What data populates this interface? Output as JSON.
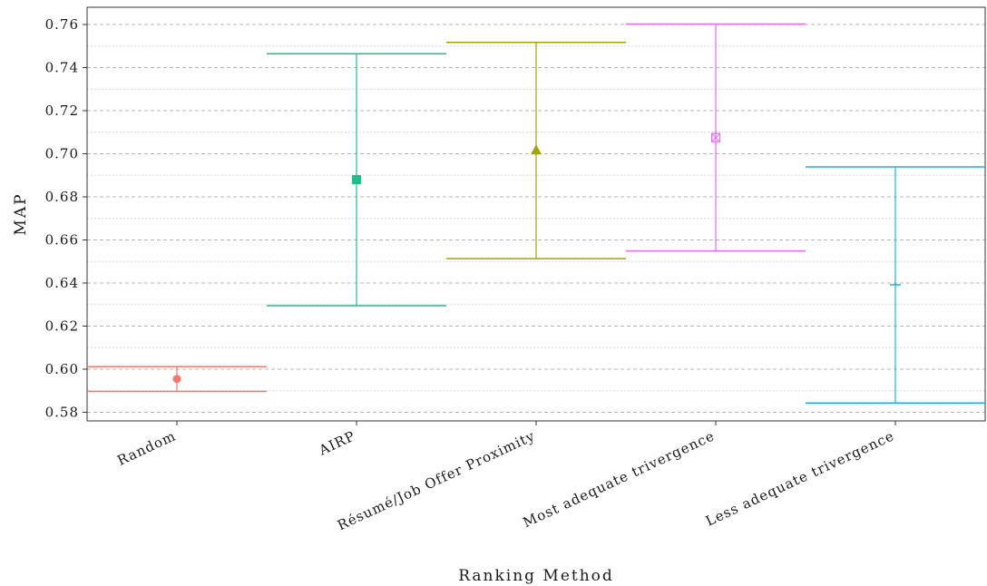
{
  "chart_data": {
    "type": "errorbar",
    "xlabel": "Ranking Method",
    "ylabel": "MAP",
    "ylim": [
      0.576,
      0.768
    ],
    "yticks": [
      0.58,
      0.6,
      0.62,
      0.64,
      0.66,
      0.68,
      0.7,
      0.72,
      0.74,
      0.76
    ],
    "ytick_labels": [
      "0.58",
      "0.60",
      "0.62",
      "0.64",
      "0.66",
      "0.68",
      "0.70",
      "0.72",
      "0.74",
      "0.76"
    ],
    "grid": true,
    "legend": "none",
    "categories": [
      "Random",
      "AIRP",
      "Résumé/Job Offer Proximity",
      "Most adequate trivergence",
      "Less adequate trivergence"
    ],
    "points": [
      {
        "category": "Random",
        "mean": 0.5955,
        "lower": 0.5897,
        "upper": 0.6012,
        "marker": "circle",
        "color": "#f8766d"
      },
      {
        "category": "AIRP",
        "mean": 0.688,
        "lower": 0.6295,
        "upper": 0.7464,
        "marker": "square",
        "color": "#1ec08a"
      },
      {
        "category": "Résumé/Job Offer Proximity",
        "mean": 0.7018,
        "lower": 0.6513,
        "upper": 0.7517,
        "marker": "triangle",
        "color": "#a3a500"
      },
      {
        "category": "Most adequate trivergence",
        "mean": 0.7075,
        "lower": 0.6549,
        "upper": 0.7602,
        "marker": "boxed-x",
        "color": "#e76bf3"
      },
      {
        "category": "Less adequate trivergence",
        "mean": 0.6392,
        "lower": 0.5843,
        "upper": 0.6939,
        "marker": "dash",
        "color": "#19b2e2"
      }
    ]
  }
}
